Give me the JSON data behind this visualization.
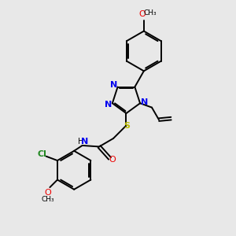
{
  "bg_color": "#e8e8e8",
  "bond_color": "#000000",
  "N_color": "#0000ee",
  "O_color": "#ee0000",
  "S_color": "#bbbb00",
  "Cl_color": "#228822",
  "line_width": 1.4,
  "figsize": [
    3.0,
    3.0
  ],
  "dpi": 100,
  "xlim": [
    0,
    10
  ],
  "ylim": [
    0,
    10
  ]
}
